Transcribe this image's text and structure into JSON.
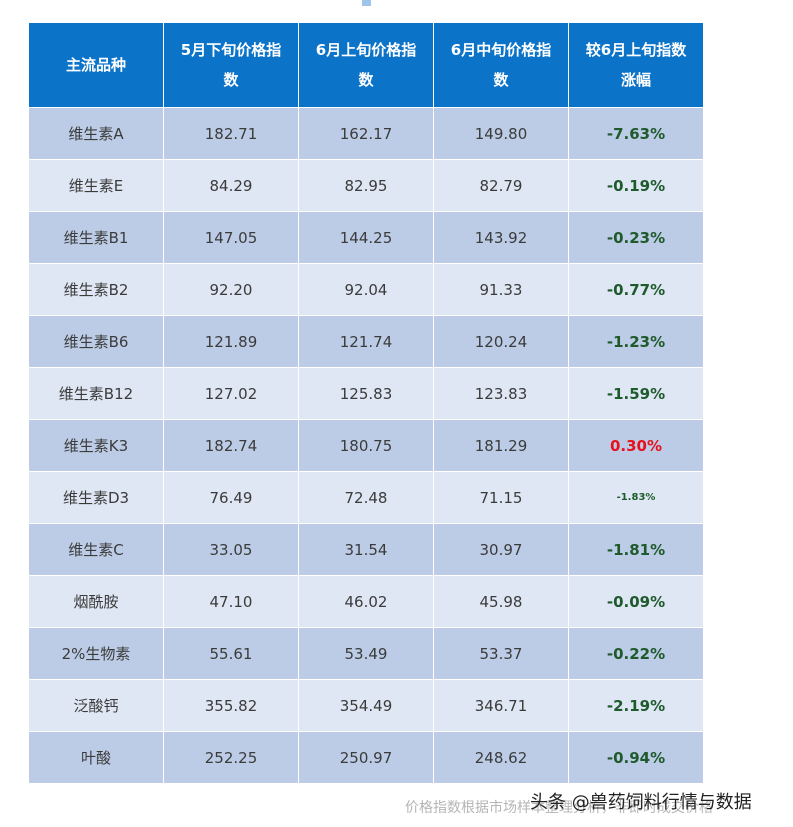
{
  "table": {
    "headers": [
      "主流品种",
      "5月下旬价格指数",
      "6月上旬价格指数",
      "6月中旬价格指数",
      "较6月上旬指数涨幅"
    ],
    "rows": [
      {
        "name": "维生素A",
        "late_may": "182.71",
        "early_june": "162.17",
        "mid_june": "149.80",
        "change": "-7.63%",
        "direction": "down"
      },
      {
        "name": "维生素E",
        "late_may": "84.29",
        "early_june": "82.95",
        "mid_june": "82.79",
        "change": "-0.19%",
        "direction": "down"
      },
      {
        "name": "维生素B1",
        "late_may": "147.05",
        "early_june": "144.25",
        "mid_june": "143.92",
        "change": "-0.23%",
        "direction": "down"
      },
      {
        "name": "维生素B2",
        "late_may": "92.20",
        "early_june": "92.04",
        "mid_june": "91.33",
        "change": "-0.77%",
        "direction": "down"
      },
      {
        "name": "维生素B6",
        "late_may": "121.89",
        "early_june": "121.74",
        "mid_june": "120.24",
        "change": "-1.23%",
        "direction": "down"
      },
      {
        "name": "维生素B12",
        "late_may": "127.02",
        "early_june": "125.83",
        "mid_june": "123.83",
        "change": "-1.59%",
        "direction": "down"
      },
      {
        "name": "维生素K3",
        "late_may": "182.74",
        "early_june": "180.75",
        "mid_june": "181.29",
        "change": "0.30%",
        "direction": "up"
      },
      {
        "name": "维生素D3",
        "late_may": "76.49",
        "early_june": "72.48",
        "mid_june": "71.15",
        "change": "-1.83%",
        "direction": "down"
      },
      {
        "name": "维生素C",
        "late_may": "33.05",
        "early_june": "31.54",
        "mid_june": "30.97",
        "change": "-1.81%",
        "direction": "down"
      },
      {
        "name": "烟酰胺",
        "late_may": "47.10",
        "early_june": "46.02",
        "mid_june": "45.98",
        "change": "-0.09%",
        "direction": "down"
      },
      {
        "name": "2%生物素",
        "late_may": "55.61",
        "early_june": "53.49",
        "mid_june": "53.37",
        "change": "-0.22%",
        "direction": "down"
      },
      {
        "name": "泛酸钙",
        "late_may": "355.82",
        "early_june": "354.49",
        "mid_june": "346.71",
        "change": "-2.19%",
        "direction": "down"
      },
      {
        "name": "叶酸",
        "late_may": "252.25",
        "early_june": "250.97",
        "mid_june": "248.62",
        "change": "-0.94%",
        "direction": "down"
      }
    ]
  },
  "footnote": "价格指数根据市场样本整理分析，非即时成交价格",
  "watermark": "头条 @兽药饲料行情与数据",
  "colors": {
    "header_bg": "#0b73c8",
    "row_dark": "#bccce6",
    "row_light": "#dfe7f4",
    "decrease": "#1e5a2c",
    "increase": "#e8101c"
  }
}
